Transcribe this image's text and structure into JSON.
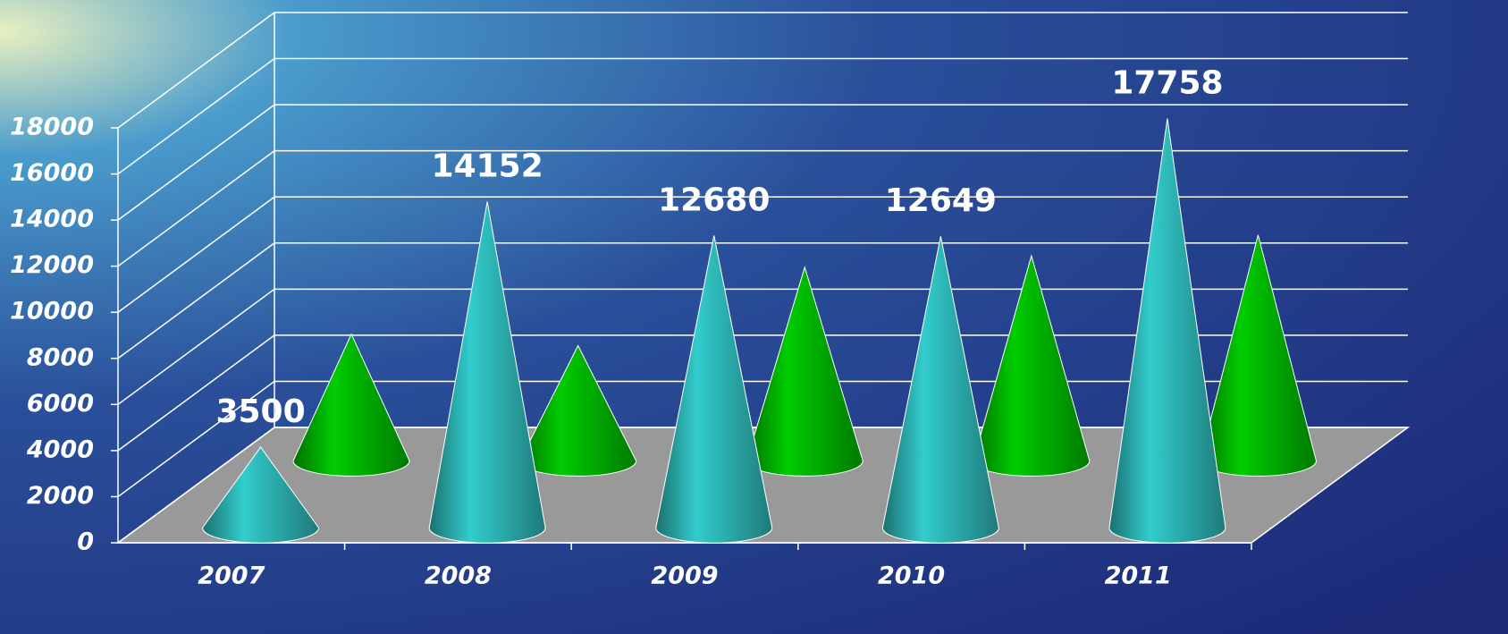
{
  "chart_data": {
    "type": "cone3d",
    "categories": [
      "2007",
      "2008",
      "2009",
      "2010",
      "2011"
    ],
    "series": [
      {
        "color": "#33cccc",
        "values": [
          3500,
          14152,
          12680,
          12649,
          17758
        ]
      },
      {
        "color": "#00cc00",
        "values": [
          5500,
          5000,
          8400,
          8900,
          9800
        ]
      }
    ],
    "ylim": [
      0,
      18000
    ],
    "yticks": [
      0,
      2000,
      4000,
      6000,
      8000,
      10000,
      12000,
      14000,
      16000,
      18000
    ],
    "grid": true
  }
}
